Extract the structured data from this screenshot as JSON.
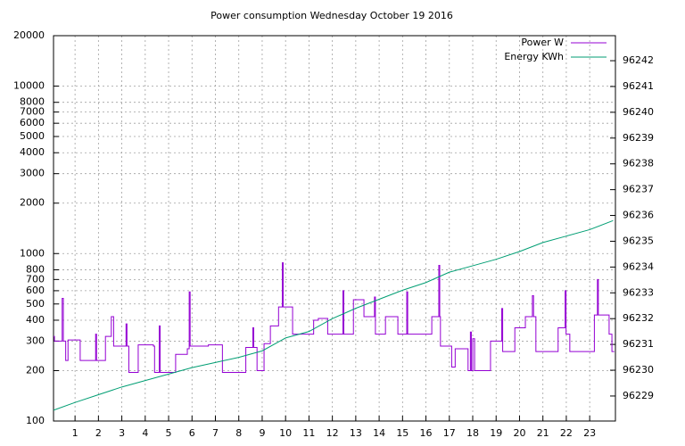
{
  "chart_data": {
    "type": "line",
    "title": "Power consumption Wednesday October 19 2016",
    "xlim": [
      0.08,
      24.1
    ],
    "xticks": [
      1,
      2,
      3,
      4,
      5,
      6,
      7,
      8,
      9,
      10,
      11,
      12,
      13,
      14,
      15,
      16,
      17,
      18,
      19,
      20,
      21,
      22,
      23
    ],
    "ylim": [
      100,
      20000
    ],
    "log_y": true,
    "yticks": [
      100,
      200,
      300,
      400,
      500,
      600,
      700,
      800,
      1000,
      2000,
      3000,
      4000,
      5000,
      6000,
      7000,
      8000,
      10000,
      20000
    ],
    "y2lim": [
      96228.03,
      96242.97
    ],
    "y2ticks": [
      96229,
      96230,
      96231,
      96232,
      96233,
      96234,
      96235,
      96236,
      96237,
      96238,
      96239,
      96240,
      96241,
      96242
    ],
    "grid": true,
    "legend": "top-right",
    "series": [
      {
        "name": "Power W",
        "color": "#9400d3",
        "style": "steps",
        "x": [
          0.08,
          0.12,
          0.45,
          0.5,
          0.6,
          0.7,
          1.22,
          1.88,
          1.92,
          2.3,
          2.55,
          2.65,
          3.18,
          3.22,
          3.3,
          3.7,
          4.35,
          4.4,
          4.6,
          4.64,
          5.3,
          5.8,
          5.88,
          5.92,
          6.7,
          7.3,
          8.3,
          8.6,
          8.64,
          8.78,
          9.08,
          9.35,
          9.7,
          9.86,
          9.9,
          10.3,
          11.2,
          11.4,
          11.8,
          12.45,
          12.49,
          12.9,
          13.35,
          13.8,
          13.84,
          14.27,
          14.8,
          15.18,
          15.22,
          16.25,
          16.55,
          16.59,
          16.62,
          17.1,
          17.25,
          17.8,
          17.9,
          17.94,
          18.0,
          18.08,
          18.76,
          19.24,
          19.28,
          19.8,
          20.25,
          20.55,
          20.6,
          20.7,
          21.65,
          21.95,
          21.99,
          22.15,
          23.2,
          23.33,
          23.37,
          23.83,
          23.95,
          24.05
        ],
        "values": [
          320,
          300,
          540,
          300,
          230,
          305,
          230,
          330,
          230,
          320,
          420,
          280,
          380,
          280,
          195,
          285,
          280,
          195,
          370,
          195,
          250,
          270,
          590,
          280,
          285,
          195,
          275,
          360,
          275,
          200,
          290,
          370,
          480,
          880,
          480,
          330,
          400,
          410,
          330,
          600,
          330,
          530,
          420,
          550,
          330,
          420,
          330,
          590,
          330,
          420,
          850,
          420,
          280,
          210,
          270,
          200,
          340,
          200,
          310,
          200,
          300,
          470,
          260,
          360,
          420,
          560,
          420,
          260,
          360,
          600,
          330,
          260,
          430,
          700,
          430,
          330,
          260,
          260
        ]
      },
      {
        "name": "Energy KWh",
        "color": "#009e73",
        "axis": "y2",
        "x": [
          0.08,
          1,
          2,
          3,
          4,
          5,
          6,
          7,
          8,
          9,
          10,
          11,
          12,
          13,
          14,
          15,
          16,
          17,
          18,
          19,
          20,
          21,
          22,
          23,
          24
        ],
        "values": [
          96228.45,
          96228.75,
          96229.05,
          96229.35,
          96229.6,
          96229.85,
          96230.1,
          96230.3,
          96230.5,
          96230.75,
          96231.25,
          96231.5,
          96232.0,
          96232.4,
          96232.75,
          96233.1,
          96233.4,
          96233.8,
          96234.05,
          96234.3,
          96234.6,
          96234.95,
          96235.2,
          96235.45,
          96235.8
        ]
      }
    ]
  }
}
